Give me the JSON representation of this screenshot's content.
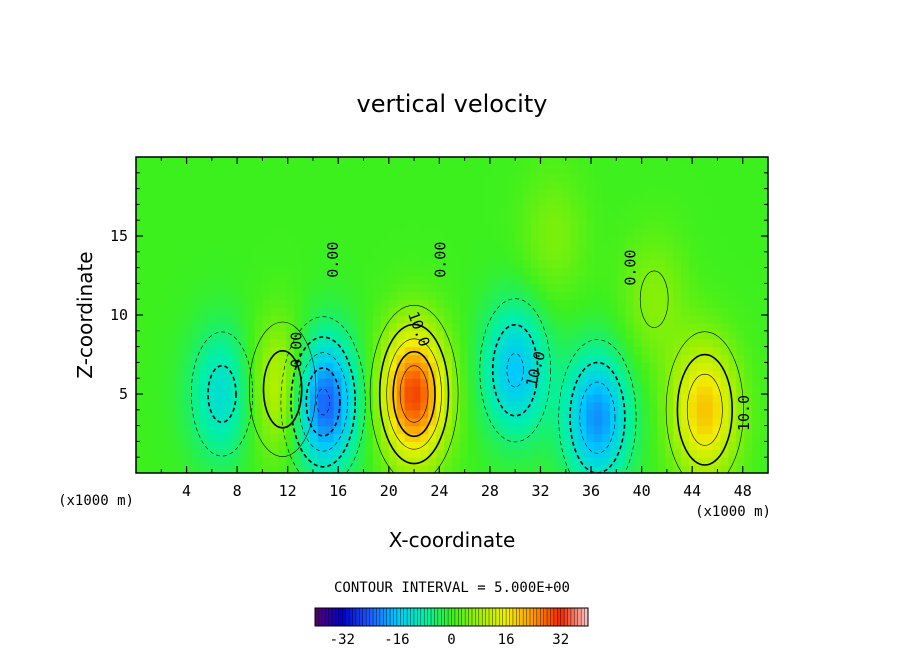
{
  "chart_data": {
    "type": "heatmap",
    "title": "vertical velocity",
    "xlabel": "X-coordinate",
    "ylabel": "Z-coordinate",
    "x_unit_left": "(x1000 m)",
    "x_unit_right": "(x1000 m)",
    "xlim": [
      0,
      50
    ],
    "ylim": [
      0,
      20
    ],
    "x_ticks": [
      4,
      8,
      12,
      16,
      20,
      24,
      28,
      32,
      36,
      40,
      44,
      48
    ],
    "x_tick_labels": [
      "4",
      "8",
      "12",
      "16",
      "20",
      "24",
      "28",
      "32",
      "36",
      "40",
      "44",
      "48"
    ],
    "y_ticks": [
      5,
      10,
      15
    ],
    "y_tick_labels": [
      "5",
      "10",
      "15"
    ],
    "contour_interval_label": "CONTOUR INTERVAL = 5.000E+00",
    "colorbar": {
      "range": [
        -40,
        40
      ],
      "ticks": [
        -32,
        -16,
        0,
        16,
        32
      ],
      "tick_labels": [
        "-32",
        "-16",
        "0",
        "16",
        "32"
      ]
    },
    "contour_labels": [
      "0.00",
      "0.00",
      "0.00",
      "0.00",
      "10.0",
      "10.0",
      "10.0"
    ],
    "features": [
      {
        "x": 6.8,
        "z": 5.0,
        "value": -12
      },
      {
        "x": 11.6,
        "z": 5.3,
        "value": 14
      },
      {
        "x": 14.8,
        "z": 4.5,
        "value": -26
      },
      {
        "x": 22.0,
        "z": 5.0,
        "value": 30
      },
      {
        "x": 30.0,
        "z": 6.5,
        "value": -16
      },
      {
        "x": 36.5,
        "z": 3.5,
        "value": -20
      },
      {
        "x": 45.0,
        "z": 4.0,
        "value": 20
      },
      {
        "x": 41.0,
        "z": 11.0,
        "value": 6
      },
      {
        "x": 33.0,
        "z": 15.0,
        "value": 5
      }
    ]
  }
}
